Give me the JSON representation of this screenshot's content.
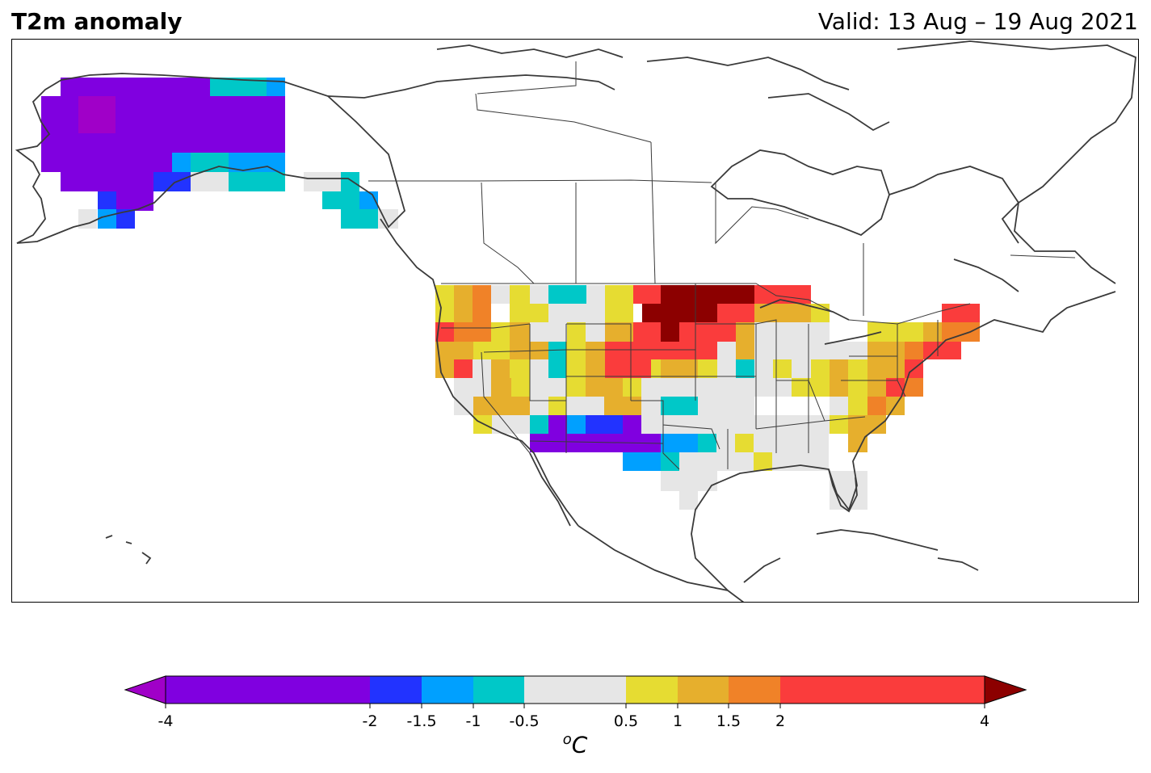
{
  "header": {
    "title": "T2m anomaly",
    "valid": "Valid: 13 Aug – 19 Aug 2021"
  },
  "colorbar": {
    "unit_base": "C",
    "unit_sup": "o",
    "ticks": [
      "-4",
      "-2",
      "-1.5",
      "-1",
      "-0.5",
      "0.5",
      "1",
      "1.5",
      "2",
      "4"
    ],
    "tick_values": [
      -4,
      -2,
      -1.5,
      -1,
      -0.5,
      0.5,
      1,
      1.5,
      2,
      4
    ],
    "bins": [
      {
        "from": -4,
        "to": -2,
        "color": "#8000e0"
      },
      {
        "from": -2,
        "to": -1.5,
        "color": "#2233ff"
      },
      {
        "from": -1.5,
        "to": -1,
        "color": "#00a0ff"
      },
      {
        "from": -1,
        "to": -0.5,
        "color": "#00c8c8"
      },
      {
        "from": -0.5,
        "to": 0.5,
        "color": "#e6e6e6"
      },
      {
        "from": 0.5,
        "to": 1,
        "color": "#e6dc32"
      },
      {
        "from": 1,
        "to": 1.5,
        "color": "#e6af2d"
      },
      {
        "from": 1.5,
        "to": 2,
        "color": "#f08228"
      },
      {
        "from": 2,
        "to": 4,
        "color": "#fa3c3c"
      }
    ],
    "under_color": "#a000c8",
    "over_color": "#8c0000"
  },
  "map_data": {
    "regions": [
      {
        "name": "Alaska interior",
        "anomaly": "-4 to -2"
      },
      {
        "name": "Alaska northeast",
        "anomaly": "-1 to -0.5"
      },
      {
        "name": "Gulf of Alaska coast",
        "anomaly": "-1.5 to -0.5"
      },
      {
        "name": "Pacific Northwest",
        "anomaly": "1 to 2"
      },
      {
        "name": "Northern Plains / Minnesota",
        "anomaly": ">4"
      },
      {
        "name": "Great Lakes",
        "anomaly": "1 to 4"
      },
      {
        "name": "Southwest (NM/AZ)",
        "anomaly": "-4 to -2"
      },
      {
        "name": "Southern Plains (TX/OK)",
        "anomaly": "-1.5 to -0.5"
      },
      {
        "name": "Southeast",
        "anomaly": "-0.5 to 0.5"
      },
      {
        "name": "Northeast / Mid-Atlantic",
        "anomaly": "1 to 4"
      }
    ]
  }
}
